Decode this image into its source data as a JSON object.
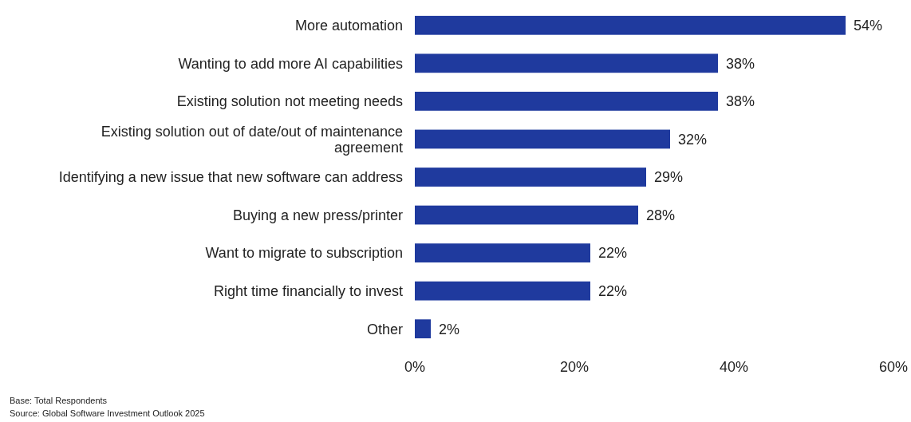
{
  "chart_data": {
    "type": "bar",
    "orientation": "horizontal",
    "categories": [
      "More automation",
      "Wanting to add more AI capabilities",
      "Existing solution not meeting needs",
      "Existing solution out of date/out of maintenance agreement",
      "Identifying a new issue that new software can address",
      "Buying a new press/printer",
      "Want to migrate to subscription",
      "Right time financially to invest",
      "Other"
    ],
    "values": [
      54,
      38,
      38,
      32,
      29,
      28,
      22,
      22,
      2
    ],
    "value_labels": [
      "54%",
      "38%",
      "38%",
      "32%",
      "29%",
      "28%",
      "22%",
      "22%",
      "2%"
    ],
    "color": "#1f3a9e",
    "xlim": [
      0,
      60
    ],
    "xticks": [
      {
        "value": 0,
        "label": "0%"
      },
      {
        "value": 20,
        "label": "20%"
      },
      {
        "value": 40,
        "label": "40%"
      },
      {
        "value": 60,
        "label": "60%"
      }
    ],
    "grid": false,
    "annotations": [
      "Base: Total Respondents",
      "Source: Global Software Investment Outlook 2025"
    ]
  }
}
